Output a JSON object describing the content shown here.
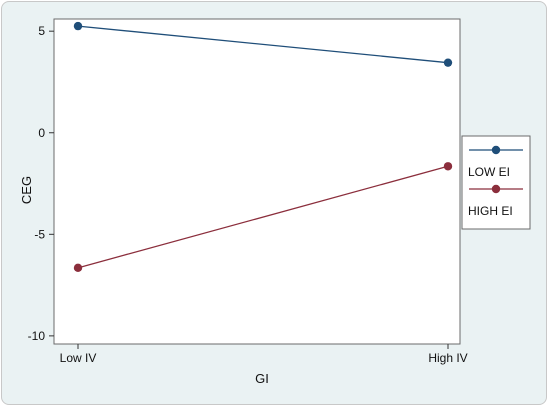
{
  "chart_data": {
    "type": "line",
    "title": "",
    "xlabel": "GI",
    "ylabel": "CEG",
    "categories": [
      "Low IV",
      "High IV"
    ],
    "ylim": [
      -10.4,
      5.6
    ],
    "yticks": [
      5,
      0,
      -5,
      -10
    ],
    "ytick_labels": [
      "5",
      "0",
      "-5",
      "-10"
    ],
    "grid": false,
    "legend_position": "right",
    "legend_labels": [
      "",
      "LOW EI",
      "HIGH EI"
    ],
    "series": [
      {
        "values": [
          5.25,
          3.45
        ],
        "color": "#1f4e79"
      },
      {
        "values": [
          -6.65,
          -1.65
        ],
        "color": "#8b2e3c"
      }
    ]
  }
}
